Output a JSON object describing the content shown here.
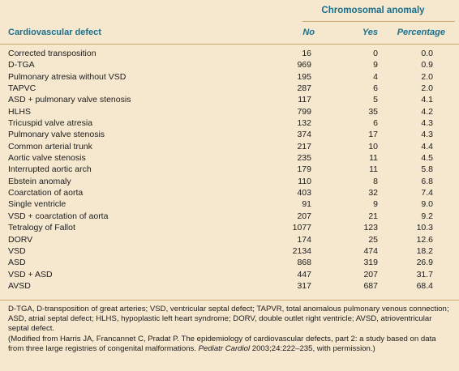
{
  "header": {
    "group_title": "Chromosomal anomaly",
    "col_defect": "Cardiovascular defect",
    "col_no": "No",
    "col_yes": "Yes",
    "col_pct": "Percentage"
  },
  "rows": [
    {
      "defect": "Corrected transposition",
      "no": "16",
      "yes": "0",
      "pct": "0.0"
    },
    {
      "defect": "D-TGA",
      "no": "969",
      "yes": "9",
      "pct": "0.9"
    },
    {
      "defect": "Pulmonary atresia without VSD",
      "no": "195",
      "yes": "4",
      "pct": "2.0"
    },
    {
      "defect": "TAPVC",
      "no": "287",
      "yes": "6",
      "pct": "2.0"
    },
    {
      "defect": "ASD + pulmonary valve stenosis",
      "no": "117",
      "yes": "5",
      "pct": "4.1"
    },
    {
      "defect": "HLHS",
      "no": "799",
      "yes": "35",
      "pct": "4.2"
    },
    {
      "defect": "Tricuspid valve atresia",
      "no": "132",
      "yes": "6",
      "pct": "4.3"
    },
    {
      "defect": "Pulmonary valve stenosis",
      "no": "374",
      "yes": "17",
      "pct": "4.3"
    },
    {
      "defect": "Common arterial trunk",
      "no": "217",
      "yes": "10",
      "pct": "4.4"
    },
    {
      "defect": "Aortic valve stenosis",
      "no": "235",
      "yes": "11",
      "pct": "4.5"
    },
    {
      "defect": "Interrupted aortic arch",
      "no": "179",
      "yes": "11",
      "pct": "5.8"
    },
    {
      "defect": "Ebstein anomaly",
      "no": "110",
      "yes": "8",
      "pct": "6.8"
    },
    {
      "defect": "Coarctation of aorta",
      "no": "403",
      "yes": "32",
      "pct": "7.4"
    },
    {
      "defect": "Single ventricle",
      "no": "91",
      "yes": "9",
      "pct": "9.0"
    },
    {
      "defect": "VSD + coarctation of aorta",
      "no": "207",
      "yes": "21",
      "pct": "9.2"
    },
    {
      "defect": "Tetralogy of Fallot",
      "no": "1077",
      "yes": "123",
      "pct": "10.3"
    },
    {
      "defect": "DORV",
      "no": "174",
      "yes": "25",
      "pct": "12.6"
    },
    {
      "defect": "VSD",
      "no": "2134",
      "yes": "474",
      "pct": "18.2"
    },
    {
      "defect": "ASD",
      "no": "868",
      "yes": "319",
      "pct": "26.9"
    },
    {
      "defect": "VSD + ASD",
      "no": "447",
      "yes": "207",
      "pct": "31.7"
    },
    {
      "defect": "AVSD",
      "no": "317",
      "yes": "687",
      "pct": "68.4"
    }
  ],
  "footnote": {
    "abbreviations": "D-TGA, D-transposition of great arteries; VSD, ventricular septal defect; TAPVR, total anomalous pulmonary venous connection; ASD, atrial septal defect; HLHS, hypoplastic left heart syndrome; DORV, double outlet right ventricle; AVSD, atrioventricular septal defect.",
    "source_pre": "(Modified from Harris JA, Francannet C, Pradat P. The epidemiology of cardiovascular defects, part 2: a study based on data from three large registries of congenital malformations. ",
    "source_journal": "Pediatr Cardiol",
    "source_post": " 2003;24:222–235, with permission.)"
  }
}
